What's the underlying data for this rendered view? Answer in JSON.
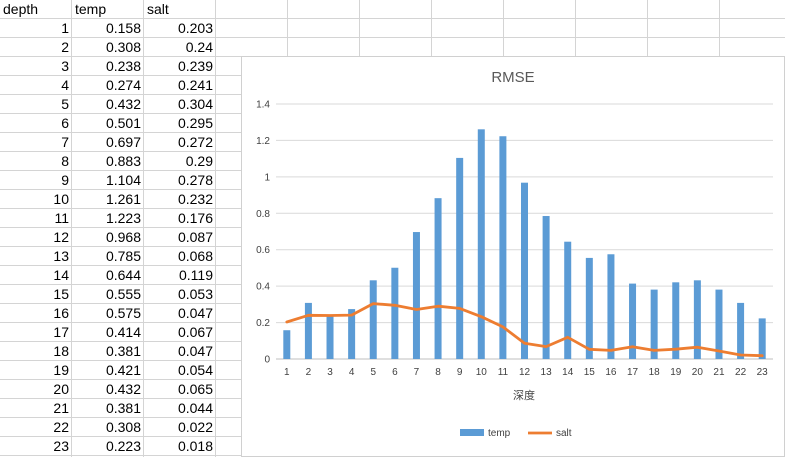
{
  "sheet": {
    "headers": [
      "depth",
      "temp",
      "salt"
    ],
    "rows": [
      [
        "1",
        "0.158",
        "0.203"
      ],
      [
        "2",
        "0.308",
        "0.24"
      ],
      [
        "3",
        "0.238",
        "0.239"
      ],
      [
        "4",
        "0.274",
        "0.241"
      ],
      [
        "5",
        "0.432",
        "0.304"
      ],
      [
        "6",
        "0.501",
        "0.295"
      ],
      [
        "7",
        "0.697",
        "0.272"
      ],
      [
        "8",
        "0.883",
        "0.29"
      ],
      [
        "9",
        "1.104",
        "0.278"
      ],
      [
        "10",
        "1.261",
        "0.232"
      ],
      [
        "11",
        "1.223",
        "0.176"
      ],
      [
        "12",
        "0.968",
        "0.087"
      ],
      [
        "13",
        "0.785",
        "0.068"
      ],
      [
        "14",
        "0.644",
        "0.119"
      ],
      [
        "15",
        "0.555",
        "0.053"
      ],
      [
        "16",
        "0.575",
        "0.047"
      ],
      [
        "17",
        "0.414",
        "0.067"
      ],
      [
        "18",
        "0.381",
        "0.047"
      ],
      [
        "19",
        "0.421",
        "0.054"
      ],
      [
        "20",
        "0.432",
        "0.065"
      ],
      [
        "21",
        "0.381",
        "0.044"
      ],
      [
        "22",
        "0.308",
        "0.022"
      ],
      [
        "23",
        "0.223",
        "0.018"
      ]
    ]
  },
  "chart_data": {
    "type": "bar",
    "title": "RMSE",
    "xlabel": "深度",
    "ylabel": "",
    "ylim": [
      0,
      1.4
    ],
    "yticks": [
      "0",
      "0.2",
      "0.4",
      "0.6",
      "0.8",
      "1",
      "1.2",
      "1.4"
    ],
    "categories": [
      "1",
      "2",
      "3",
      "4",
      "5",
      "6",
      "7",
      "8",
      "9",
      "10",
      "11",
      "12",
      "13",
      "14",
      "15",
      "16",
      "17",
      "18",
      "19",
      "20",
      "21",
      "22",
      "23"
    ],
    "series": [
      {
        "name": "temp",
        "kind": "bar",
        "color": "#5b9bd5",
        "values": [
          0.158,
          0.308,
          0.238,
          0.274,
          0.432,
          0.501,
          0.697,
          0.883,
          1.104,
          1.261,
          1.223,
          0.968,
          0.785,
          0.644,
          0.555,
          0.575,
          0.414,
          0.381,
          0.421,
          0.432,
          0.381,
          0.308,
          0.223
        ]
      },
      {
        "name": "salt",
        "kind": "line",
        "color": "#ed7d31",
        "values": [
          0.203,
          0.24,
          0.239,
          0.241,
          0.304,
          0.295,
          0.272,
          0.29,
          0.278,
          0.232,
          0.176,
          0.087,
          0.068,
          0.119,
          0.053,
          0.047,
          0.067,
          0.047,
          0.054,
          0.065,
          0.044,
          0.022,
          0.018
        ]
      }
    ],
    "grid": true,
    "legend": "bottom"
  }
}
